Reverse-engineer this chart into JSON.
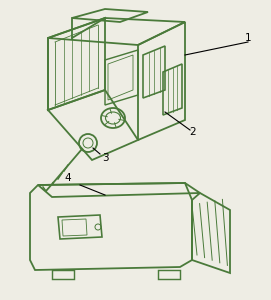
{
  "bg_color": "#eeede4",
  "line_color": "#4a7a3a",
  "label_color": "#000000",
  "fig_width": 2.71,
  "fig_height": 3.0,
  "dpi": 100
}
